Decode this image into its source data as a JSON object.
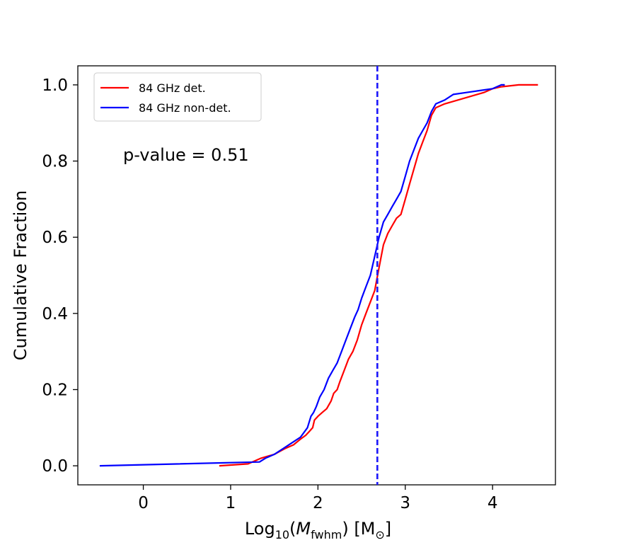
{
  "chart_data": {
    "type": "line",
    "title": "",
    "xlabel": "Log10(Mfwhm) [M⊙]",
    "xlabel_parts": {
      "pre": "Log",
      "sub10": "10",
      "open": "(",
      "M": "M",
      "sub_fwhm": "fwhm",
      "close": ")",
      "unit_open": " [M",
      "unit_sub": "⊙",
      "unit_close": "]"
    },
    "ylabel": "Cumulative Fraction",
    "xlim": [
      -0.75,
      4.72
    ],
    "ylim": [
      -0.05,
      1.05
    ],
    "xticks": [
      0,
      1,
      2,
      3,
      4
    ],
    "xtick_labels": [
      "0",
      "1",
      "2",
      "3",
      "4"
    ],
    "yticks": [
      0.0,
      0.2,
      0.4,
      0.6,
      0.8,
      1.0
    ],
    "ytick_labels": [
      "0.0",
      "0.2",
      "0.4",
      "0.6",
      "0.8",
      "1.0"
    ],
    "grid": false,
    "legend_position": "upper-left",
    "annotation": "p-value = 0.51",
    "vline": {
      "x": 2.68,
      "style": "dashed",
      "color": "#1a1aff"
    },
    "series": [
      {
        "name": "84 GHz det.",
        "color": "#ff0000",
        "x": [
          0.87,
          1.2,
          1.35,
          1.5,
          1.62,
          1.72,
          1.8,
          1.86,
          1.9,
          1.94,
          1.96,
          2.0,
          2.05,
          2.1,
          2.15,
          2.18,
          2.22,
          2.25,
          2.3,
          2.35,
          2.4,
          2.45,
          2.5,
          2.55,
          2.6,
          2.65,
          2.7,
          2.75,
          2.8,
          2.85,
          2.9,
          2.95,
          3.0,
          3.05,
          3.1,
          3.15,
          3.2,
          3.25,
          3.3,
          3.35,
          3.45,
          3.6,
          3.75,
          3.9,
          4.0,
          4.1,
          4.3,
          4.52
        ],
        "y": [
          0.0,
          0.005,
          0.02,
          0.03,
          0.045,
          0.055,
          0.07,
          0.08,
          0.09,
          0.1,
          0.12,
          0.13,
          0.14,
          0.15,
          0.17,
          0.19,
          0.2,
          0.22,
          0.25,
          0.28,
          0.3,
          0.33,
          0.37,
          0.4,
          0.43,
          0.46,
          0.52,
          0.58,
          0.61,
          0.63,
          0.65,
          0.66,
          0.7,
          0.74,
          0.78,
          0.82,
          0.85,
          0.88,
          0.92,
          0.94,
          0.95,
          0.96,
          0.97,
          0.98,
          0.99,
          0.995,
          1.0,
          1.0
        ]
      },
      {
        "name": "84 GHz non-det.",
        "color": "#0000ff",
        "x": [
          -0.5,
          1.33,
          1.4,
          1.5,
          1.6,
          1.7,
          1.8,
          1.88,
          1.92,
          1.95,
          1.98,
          2.02,
          2.07,
          2.12,
          2.17,
          2.22,
          2.27,
          2.32,
          2.37,
          2.42,
          2.46,
          2.5,
          2.55,
          2.6,
          2.65,
          2.7,
          2.75,
          2.8,
          2.85,
          2.9,
          2.95,
          3.0,
          3.05,
          3.1,
          3.15,
          3.2,
          3.25,
          3.3,
          3.35,
          3.45,
          3.55,
          3.7,
          3.85,
          4.0,
          4.1,
          4.14
        ],
        "y": [
          0.0,
          0.01,
          0.02,
          0.03,
          0.045,
          0.06,
          0.075,
          0.1,
          0.13,
          0.14,
          0.155,
          0.18,
          0.2,
          0.23,
          0.25,
          0.27,
          0.3,
          0.33,
          0.36,
          0.39,
          0.41,
          0.44,
          0.47,
          0.5,
          0.55,
          0.6,
          0.64,
          0.66,
          0.68,
          0.7,
          0.72,
          0.76,
          0.8,
          0.83,
          0.86,
          0.88,
          0.9,
          0.93,
          0.95,
          0.96,
          0.975,
          0.98,
          0.985,
          0.99,
          1.0,
          1.0
        ]
      }
    ]
  }
}
